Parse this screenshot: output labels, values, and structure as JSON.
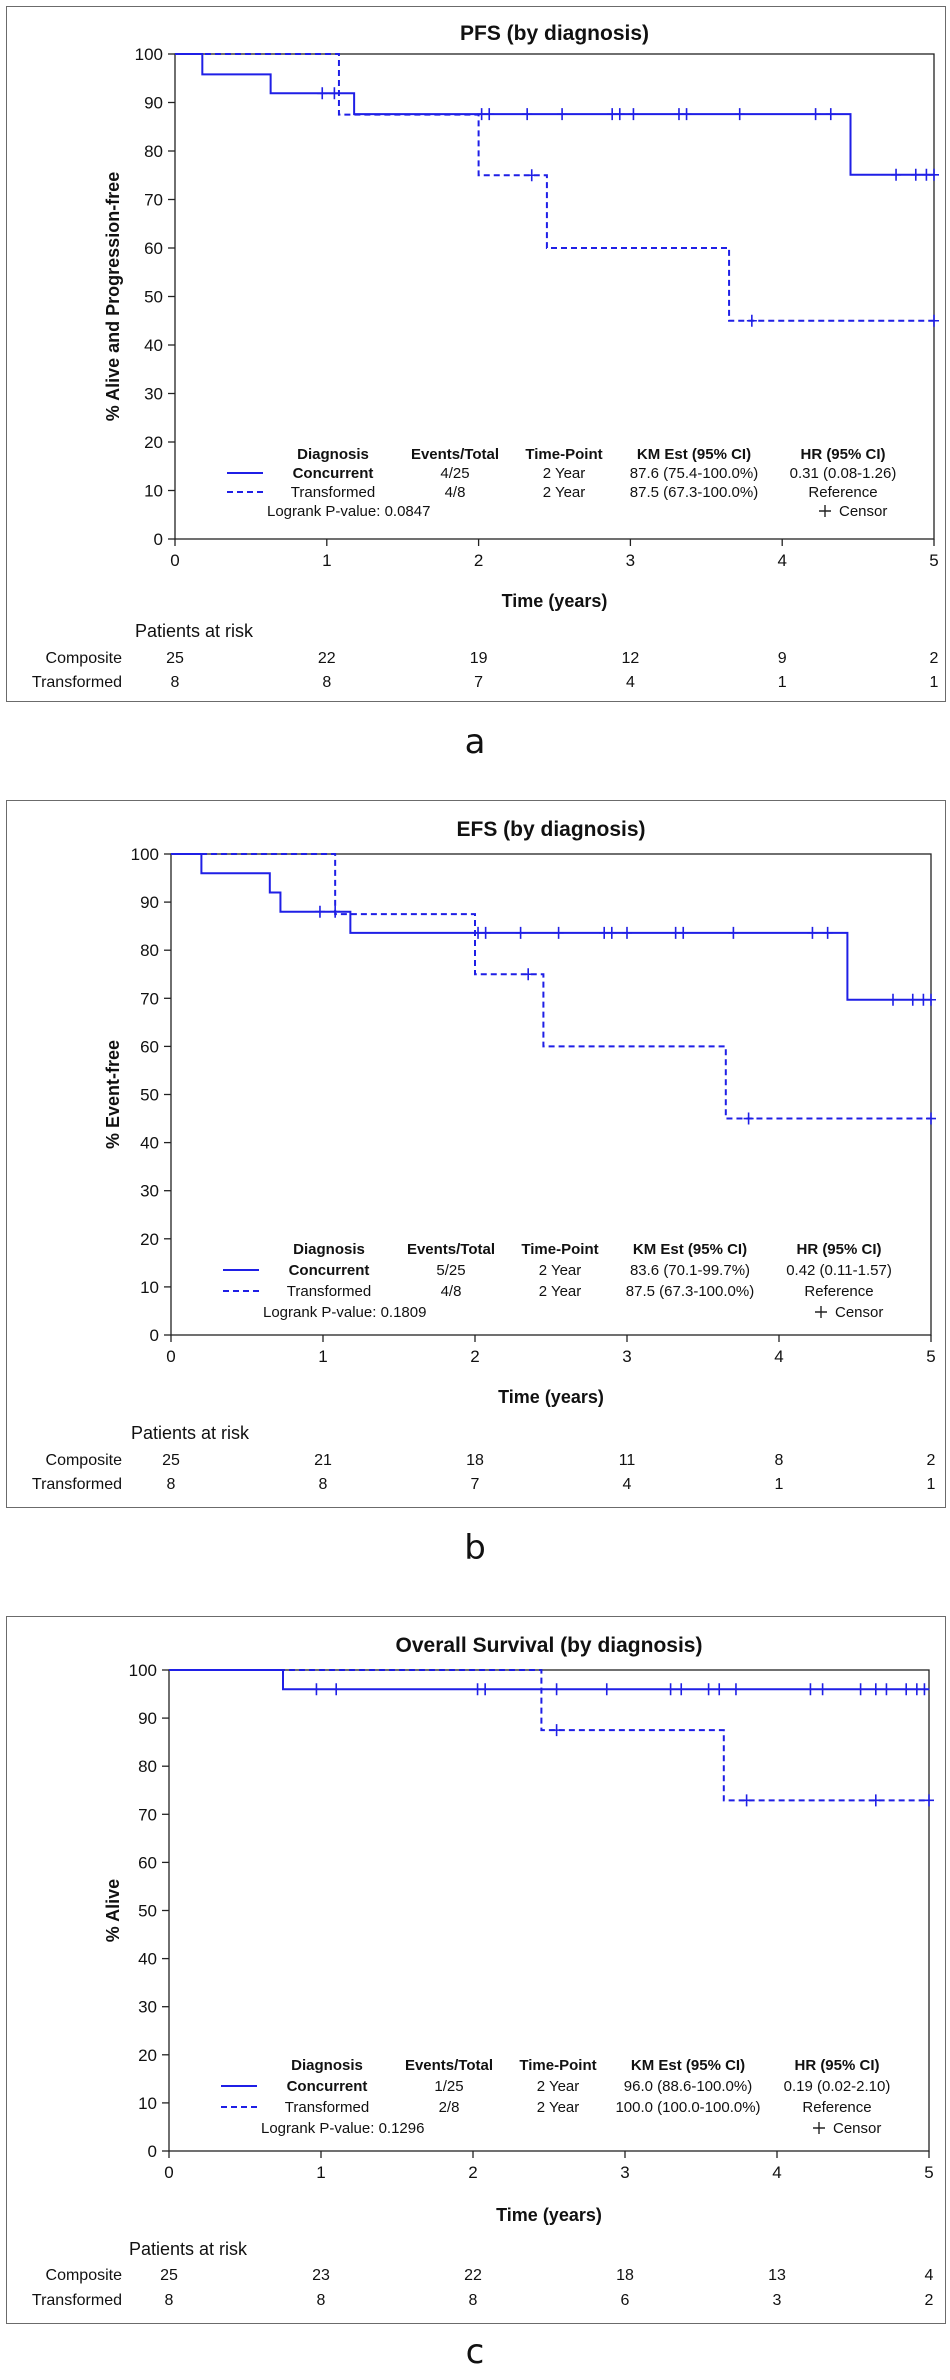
{
  "colors": {
    "series": "#1f1fe6",
    "axis": "#222222",
    "frame": "#6b6b6b"
  },
  "chart_data": [
    {
      "type": "line",
      "subtype": "kaplan-meier",
      "caption": "a",
      "title": "PFS (by diagnosis)",
      "xlabel": "Time (years)",
      "ylabel": "% Alive and Progression-free",
      "xlim": [
        0,
        5
      ],
      "ylim": [
        0,
        100
      ],
      "xticks": [
        0,
        1,
        2,
        3,
        4,
        5
      ],
      "yticks": [
        0,
        10,
        20,
        30,
        40,
        50,
        60,
        70,
        80,
        90,
        100
      ],
      "series": [
        {
          "name": "Concurrent",
          "style": "solid",
          "steps": [
            [
              0,
              100
            ],
            [
              0.18,
              95.8
            ],
            [
              0.63,
              91.9
            ],
            [
              1.18,
              87.6
            ],
            [
              4.45,
              75.1
            ],
            [
              5,
              75.1
            ]
          ],
          "censors": [
            [
              0.97,
              91.9
            ],
            [
              1.05,
              91.9
            ],
            [
              2.02,
              87.6
            ],
            [
              2.07,
              87.6
            ],
            [
              2.32,
              87.6
            ],
            [
              2.55,
              87.6
            ],
            [
              2.88,
              87.6
            ],
            [
              2.93,
              87.6
            ],
            [
              3.02,
              87.6
            ],
            [
              3.32,
              87.6
            ],
            [
              3.37,
              87.6
            ],
            [
              3.72,
              87.6
            ],
            [
              4.22,
              87.6
            ],
            [
              4.32,
              87.6
            ],
            [
              4.75,
              75.1
            ],
            [
              4.88,
              75.1
            ],
            [
              4.95,
              75.1
            ],
            [
              5.0,
              75.1
            ]
          ]
        },
        {
          "name": "Transformed",
          "style": "dashed",
          "steps": [
            [
              0,
              100
            ],
            [
              1.08,
              87.5
            ],
            [
              2.0,
              75.0
            ],
            [
              2.45,
              60.0
            ],
            [
              3.65,
              45.0
            ],
            [
              5,
              45.0
            ]
          ],
          "censors": [
            [
              2.35,
              75.0
            ],
            [
              3.8,
              45.0
            ],
            [
              5.0,
              45.0
            ]
          ]
        }
      ],
      "legend": {
        "headers": [
          "Diagnosis",
          "Events/Total",
          "Time-Point",
          "KM Est (95% CI)",
          "HR (95% CI)"
        ],
        "rows": [
          [
            "Concurrent",
            "4/25",
            "2 Year",
            "87.6 (75.4-100.0%)",
            "0.31 (0.08-1.26)"
          ],
          [
            "Transformed",
            "4/8",
            "2 Year",
            "87.5 (67.3-100.0%)",
            "Reference"
          ]
        ],
        "logrank": "Logrank P-value: 0.0847",
        "censor": "Censor"
      },
      "at_risk": {
        "title": "Patients at risk",
        "rows": [
          {
            "label": "Composite",
            "values": [
              25,
              22,
              19,
              12,
              9,
              2
            ]
          },
          {
            "label": "Transformed",
            "values": [
              8,
              8,
              7,
              4,
              1,
              1
            ]
          }
        ]
      }
    },
    {
      "type": "line",
      "subtype": "kaplan-meier",
      "caption": "b",
      "title": "EFS (by diagnosis)",
      "xlabel": "Time (years)",
      "ylabel": "% Event-free",
      "xlim": [
        0,
        5
      ],
      "ylim": [
        0,
        100
      ],
      "xticks": [
        0,
        1,
        2,
        3,
        4,
        5
      ],
      "yticks": [
        0,
        10,
        20,
        30,
        40,
        50,
        60,
        70,
        80,
        90,
        100
      ],
      "series": [
        {
          "name": "Concurrent",
          "style": "solid",
          "steps": [
            [
              0,
              100
            ],
            [
              0.2,
              96.0
            ],
            [
              0.65,
              92.0
            ],
            [
              0.72,
              88.0
            ],
            [
              1.18,
              83.6
            ],
            [
              4.45,
              69.7
            ],
            [
              5,
              69.7
            ]
          ],
          "censors": [
            [
              0.98,
              88.0
            ],
            [
              1.08,
              88.0
            ],
            [
              2.02,
              83.6
            ],
            [
              2.07,
              83.6
            ],
            [
              2.3,
              83.6
            ],
            [
              2.55,
              83.6
            ],
            [
              2.85,
              83.6
            ],
            [
              2.9,
              83.6
            ],
            [
              3.0,
              83.6
            ],
            [
              3.32,
              83.6
            ],
            [
              3.37,
              83.6
            ],
            [
              3.7,
              83.6
            ],
            [
              4.22,
              83.6
            ],
            [
              4.32,
              83.6
            ],
            [
              4.75,
              69.7
            ],
            [
              4.88,
              69.7
            ],
            [
              4.95,
              69.7
            ],
            [
              5.0,
              69.7
            ]
          ]
        },
        {
          "name": "Transformed",
          "style": "dashed",
          "steps": [
            [
              0,
              100
            ],
            [
              1.08,
              87.5
            ],
            [
              2.0,
              75.0
            ],
            [
              2.45,
              60.0
            ],
            [
              3.65,
              45.0
            ],
            [
              5,
              45.0
            ]
          ],
          "censors": [
            [
              2.35,
              75.0
            ],
            [
              3.8,
              45.0
            ],
            [
              5.0,
              45.0
            ]
          ]
        }
      ],
      "legend": {
        "headers": [
          "Diagnosis",
          "Events/Total",
          "Time-Point",
          "KM Est (95% CI)",
          "HR (95% CI)"
        ],
        "rows": [
          [
            "Concurrent",
            "5/25",
            "2 Year",
            "83.6 (70.1-99.7%)",
            "0.42 (0.11-1.57)"
          ],
          [
            "Transformed",
            "4/8",
            "2 Year",
            "87.5 (67.3-100.0%)",
            "Reference"
          ]
        ],
        "logrank": "Logrank P-value: 0.1809",
        "censor": "Censor"
      },
      "at_risk": {
        "title": "Patients at risk",
        "rows": [
          {
            "label": "Composite",
            "values": [
              25,
              21,
              18,
              11,
              8,
              2
            ]
          },
          {
            "label": "Transformed",
            "values": [
              8,
              8,
              7,
              4,
              1,
              1
            ]
          }
        ]
      }
    },
    {
      "type": "line",
      "subtype": "kaplan-meier",
      "caption": "c",
      "title": "Overall Survival (by diagnosis)",
      "xlabel": "Time (years)",
      "ylabel": "% Alive",
      "xlim": [
        0,
        5
      ],
      "ylim": [
        0,
        100
      ],
      "xticks": [
        0,
        1,
        2,
        3,
        4,
        5
      ],
      "yticks": [
        0,
        10,
        20,
        30,
        40,
        50,
        60,
        70,
        80,
        90,
        100
      ],
      "series": [
        {
          "name": "Concurrent",
          "style": "solid",
          "steps": [
            [
              0,
              100
            ],
            [
              0.75,
              96.0
            ],
            [
              5,
              96.0
            ]
          ],
          "censors": [
            [
              0.97,
              96.0
            ],
            [
              1.1,
              96.0
            ],
            [
              2.03,
              96.0
            ],
            [
              2.08,
              96.0
            ],
            [
              2.55,
              96.0
            ],
            [
              2.88,
              96.0
            ],
            [
              3.3,
              96.0
            ],
            [
              3.37,
              96.0
            ],
            [
              3.55,
              96.0
            ],
            [
              3.62,
              96.0
            ],
            [
              3.73,
              96.0
            ],
            [
              4.22,
              96.0
            ],
            [
              4.3,
              96.0
            ],
            [
              4.55,
              96.0
            ],
            [
              4.65,
              96.0
            ],
            [
              4.72,
              96.0
            ],
            [
              4.85,
              96.0
            ],
            [
              4.92,
              96.0
            ],
            [
              4.97,
              96.0
            ]
          ]
        },
        {
          "name": "Transformed",
          "style": "dashed",
          "steps": [
            [
              0,
              100
            ],
            [
              2.45,
              87.5
            ],
            [
              3.65,
              72.9
            ],
            [
              5,
              72.9
            ]
          ],
          "censors": [
            [
              2.55,
              87.5
            ],
            [
              3.8,
              72.9
            ],
            [
              4.65,
              72.9
            ],
            [
              5.0,
              72.9
            ]
          ]
        }
      ],
      "legend": {
        "headers": [
          "Diagnosis",
          "Events/Total",
          "Time-Point",
          "KM Est (95% CI)",
          "HR (95% CI)"
        ],
        "rows": [
          [
            "Concurrent",
            "1/25",
            "2 Year",
            "96.0 (88.6-100.0%)",
            "0.19 (0.02-2.10)"
          ],
          [
            "Transformed",
            "2/8",
            "2 Year",
            "100.0 (100.0-100.0%)",
            "Reference"
          ]
        ],
        "logrank": "Logrank P-value: 0.1296",
        "censor": "Censor"
      },
      "at_risk": {
        "title": "Patients at risk",
        "rows": [
          {
            "label": "Composite",
            "values": [
              25,
              23,
              22,
              18,
              13,
              4
            ]
          },
          {
            "label": "Transformed",
            "values": [
              8,
              8,
              8,
              6,
              3,
              2
            ]
          }
        ]
      }
    }
  ]
}
